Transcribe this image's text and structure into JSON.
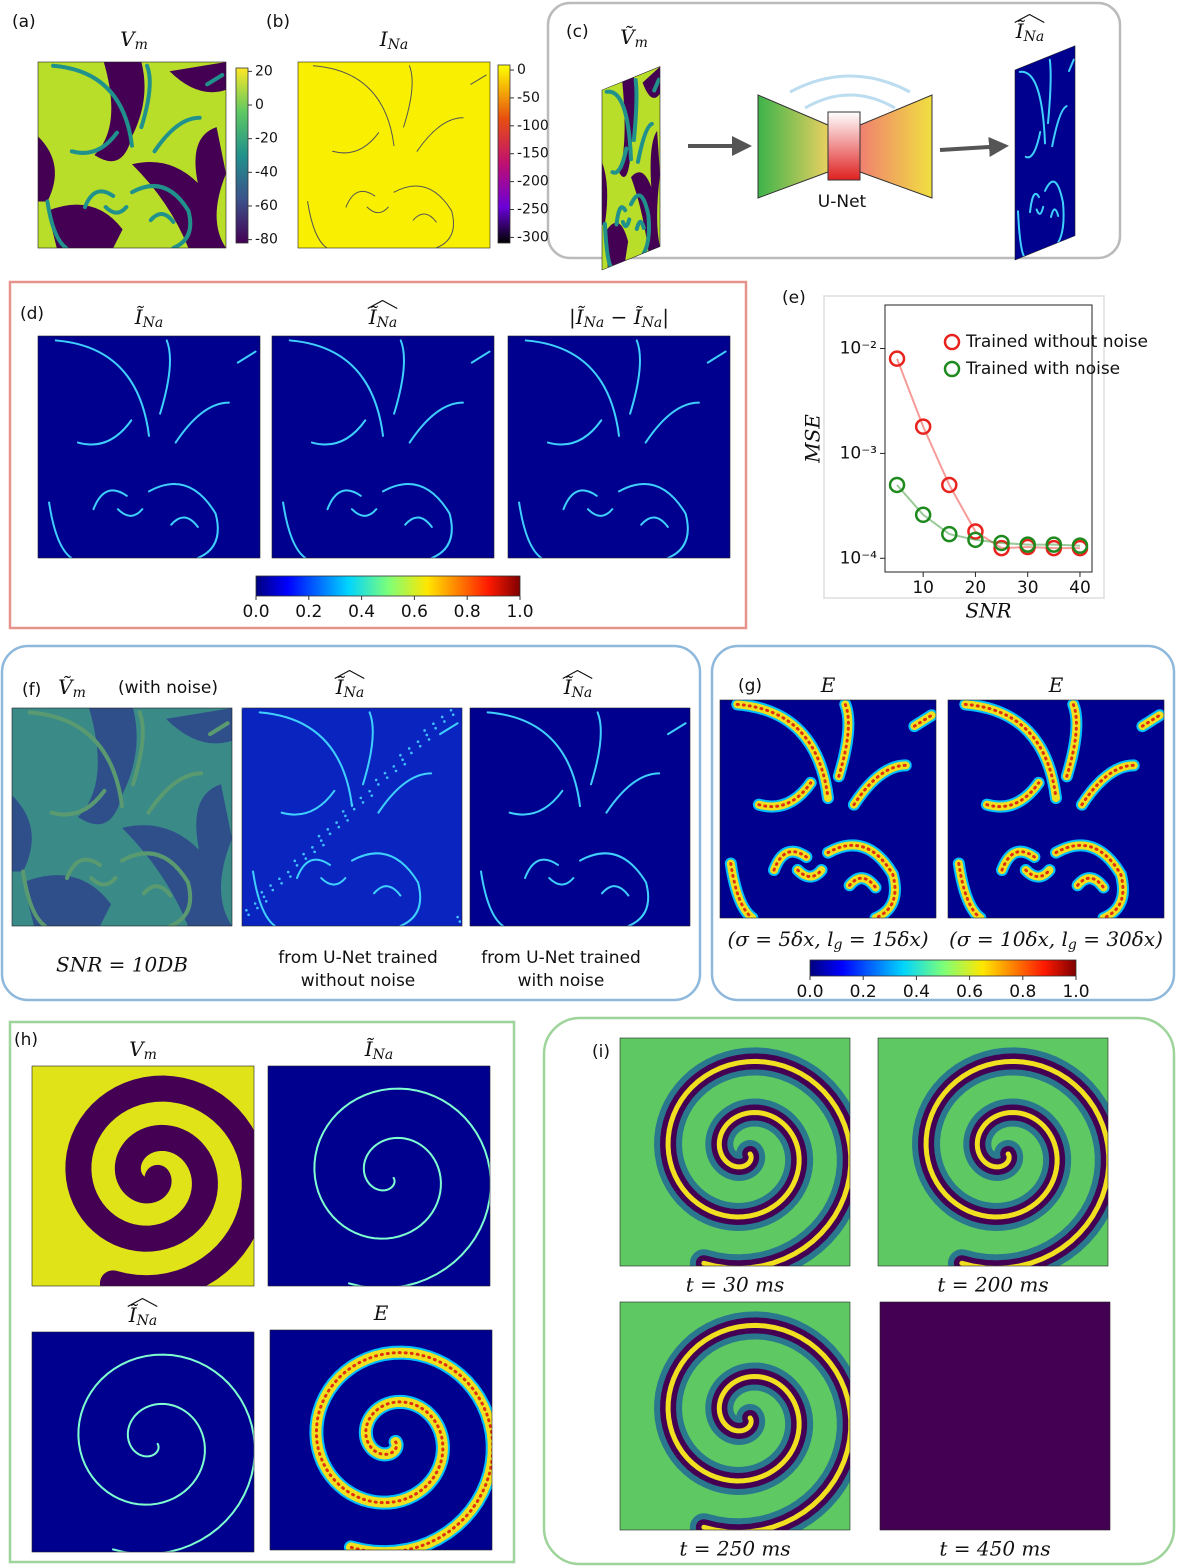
{
  "panels": {
    "a": {
      "label": "(a)",
      "title": [
        "V",
        "m"
      ],
      "colorbar": {
        "lim": [
          -82,
          22
        ],
        "ticks": [
          20,
          0,
          -20,
          -40,
          -60,
          -80
        ]
      }
    },
    "b": {
      "label": "(b)",
      "title": [
        "I",
        "Na"
      ],
      "colorbar": {
        "lim": [
          -310,
          9
        ],
        "ticks": [
          0,
          -50,
          -100,
          -150,
          -200,
          -250,
          -300
        ]
      }
    },
    "c": {
      "label": "(c)",
      "input_title": [
        "Ṽ",
        "m"
      ],
      "output_title": [
        "Ĩ",
        "Na"
      ],
      "network": "U-Net"
    },
    "d": {
      "label": "(d)",
      "titles": [
        [
          "Ĩ",
          "Na"
        ],
        [
          "Ĩ",
          "Na"
        ],
        [
          "|Ĩ",
          "Na",
          " − Ĩ",
          "Na",
          "|"
        ]
      ],
      "colorbar": {
        "lim": [
          0,
          1
        ],
        "ticks": [
          {
            "value": 0,
            "label": "0.0"
          },
          {
            "value": 0.2,
            "label": "0.2"
          },
          {
            "value": 0.4,
            "label": "0.4"
          },
          {
            "value": 0.6,
            "label": "0.6"
          },
          {
            "value": 0.8,
            "label": "0.8"
          },
          {
            "value": 1,
            "label": "1.0"
          }
        ]
      }
    },
    "e": {
      "label": "(e)"
    },
    "f": {
      "label": "(f)",
      "titles": [
        [
          "Ṽ",
          "m"
        ],
        [
          "Ĩ",
          "Na"
        ],
        [
          "Ĩ",
          "Na"
        ]
      ],
      "title_note": "(with noise)",
      "captions": [
        [
          "SNR = 10DB"
        ],
        [
          "from U-Net trained",
          "without noise"
        ],
        [
          "from U-Net trained",
          "with noise"
        ]
      ]
    },
    "g": {
      "label": "(g)",
      "titles": [
        [
          "E"
        ],
        [
          "E"
        ]
      ],
      "captions": [
        [
          "(σ = 5δx, l",
          "g",
          " = 15δx)"
        ],
        [
          "(σ = 10δx, l",
          "g",
          " = 30δx)"
        ]
      ],
      "colorbar": {
        "lim": [
          0,
          1
        ],
        "ticks": [
          {
            "value": 0,
            "label": "0.0"
          },
          {
            "value": 0.2,
            "label": "0.2"
          },
          {
            "value": 0.4,
            "label": "0.4"
          },
          {
            "value": 0.6,
            "label": "0.6"
          },
          {
            "value": 0.8,
            "label": "0.8"
          },
          {
            "value": 1,
            "label": "1.0"
          }
        ]
      }
    },
    "h": {
      "label": "(h)",
      "titles": [
        [
          "V",
          "m"
        ],
        [
          "Ĩ",
          "Na"
        ],
        [
          "Ĩ",
          "Na"
        ],
        [
          "E"
        ]
      ]
    },
    "i": {
      "label": "(i)",
      "captions": [
        "t = 30 ms",
        "t = 200 ms",
        "t = 250 ms",
        "t = 450 ms"
      ]
    }
  },
  "chart_data": {
    "type": "scatter",
    "x_label": "SNR",
    "y_label": "MSE",
    "log_y": true,
    "legend": "upper right",
    "x": [
      5,
      10,
      15,
      20,
      25,
      30,
      35,
      40
    ],
    "series": [
      {
        "name": "Trained without noise",
        "color": "#e8231d",
        "values": [
          0.008,
          0.0018,
          0.0005,
          0.00018,
          0.000125,
          0.000128,
          0.000125,
          0.000125
        ]
      },
      {
        "name": "Trained with noise",
        "color": "#1e8a1e",
        "values": [
          0.0005,
          0.00026,
          0.00017,
          0.00015,
          0.00014,
          0.000135,
          0.000135,
          0.000132
        ]
      }
    ],
    "xlim": [
      2.7,
      42.3
    ],
    "xticks": [
      10,
      20,
      30,
      40
    ],
    "ylim": [
      7.4e-05,
      0.026
    ],
    "yticks": [
      {
        "value": 0.01,
        "label": "10⁻²"
      },
      {
        "value": 0.001,
        "label": "10⁻³"
      },
      {
        "value": 0.0001,
        "label": "10⁻⁴"
      }
    ]
  }
}
